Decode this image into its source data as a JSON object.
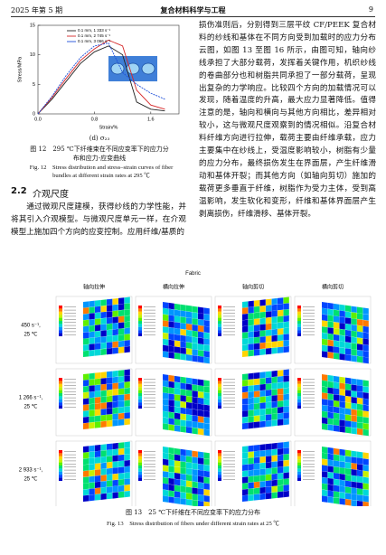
{
  "header": {
    "issue": "2025 年第 5 期",
    "journal": "复合材料科学与工程",
    "page": "9"
  },
  "figure12": {
    "chart": {
      "type": "line",
      "x_label": "Strain/%",
      "y_label": "Stress/MPa",
      "x": [
        0,
        0.2,
        0.4,
        0.6,
        0.8,
        1.0,
        1.2,
        1.4,
        1.6,
        1.8
      ],
      "series": [
        {
          "name": "0.1 mm, 1 333 s⁻¹",
          "color": "#222222",
          "values": [
            0,
            2.5,
            5.5,
            8.5,
            10.5,
            11.5,
            10,
            2,
            0.8,
            0.5
          ]
        },
        {
          "name": "0.1 mm, 2 745 s⁻¹",
          "color": "#d62728",
          "values": [
            0,
            2.8,
            6,
            9,
            11,
            12.5,
            11.5,
            4,
            1.5,
            0.8
          ]
        },
        {
          "name": "0.1 mm, 3 066 s⁻¹",
          "color": "#1f4fd8",
          "values": [
            0,
            3,
            6.5,
            9.5,
            11.5,
            12,
            7,
            5,
            3.5,
            2.5
          ]
        }
      ],
      "xlim": [
        0,
        2
      ],
      "ylim": [
        0,
        15
      ],
      "xticks": [
        {
          "value": 0,
          "label": "0.0"
        },
        {
          "value": 0.8,
          "label": "0.8"
        },
        {
          "value": 1.6,
          "label": "1.6"
        }
      ],
      "yticks": [
        0,
        5,
        10,
        15
      ]
    },
    "panel_label": "(d) σ₂₃",
    "caption_cn": "图 12　295 ℃下纤维束在不同应变率下的应力分布和应力-应变曲线",
    "caption_en": "Fig. 12　Stress distribution and stress–strain curves of fiber bundles at different strain rates at 295 ℃"
  },
  "section": {
    "number": "2.2",
    "title": "介观尺度"
  },
  "left_paragraph": "通过微观尺度建模，获得纱线的力学性能，并将其引入介观模型。与微观尺度单元一样，在介观模型上施加四个方向的应变控制。应用纤维/基质的",
  "right_paragraph": "损伤准则后，分别得到三层平纹 CF/PEEK 复合材料的纱线和基体在不同方向受到加载时的应力分布云图，如图 13 至图 16 所示，由图可知，轴向纱线承担了大部分载荷，发挥着关键作用，机织纱线的卷曲部分也和树脂共同承担了一部分载荷，呈现出复杂的力学响应。比较四个方向的加载情况可以发现，随着温度的升高，最大应力显著降低。值得注意的是，轴向和横向与其他方向相比，差异相对较小，这与微观尺度观察到的情况相似。沿复合材料纤维方向进行拉伸，载荷主要由纤维承载，应力主要集中在纱线上，受温度影响较小，树脂有少量的应力分布，最终损伤发生在界面层，产生纤维滑动和基体开裂；而其他方向（如轴向剪切）施加的载荷更多垂直于纤维，树脂作为受力主体，受到高温影响，发生软化和变形，纤维和基体界面层产生剥离损伤，纤维滑移、基体开裂。",
  "figure13": {
    "title": "Fabric",
    "columns": [
      "轴向拉伸",
      "横向拉伸",
      "轴向剪切",
      "横向剪切"
    ],
    "rows": [
      {
        "rate": "450 s⁻¹,",
        "temperature": "25 ℃"
      },
      {
        "rate": "1 266 s⁻¹,",
        "temperature": "25 ℃"
      },
      {
        "rate": "2 933 s⁻¹,",
        "temperature": "25 ℃"
      }
    ],
    "caption_cn": "图 13　25 ℃下纤维在不同应变率下的应力分布",
    "caption_en": "Fig. 13　Stress distribution of fibers under different strain rates at 25 ℃"
  }
}
